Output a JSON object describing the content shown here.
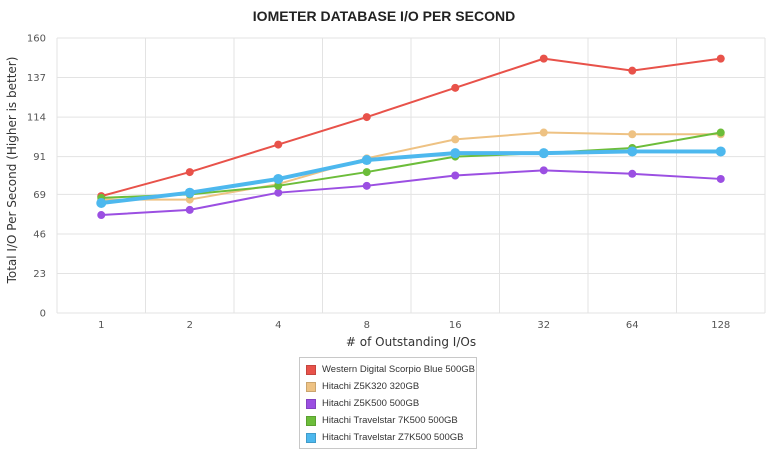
{
  "chart_data": {
    "type": "line",
    "title": "IOMETER DATABASE I/O PER SECOND",
    "xlabel": "# of Outstanding I/Os",
    "ylabel": "Total I/O Per Second (Higher is better)",
    "categories": [
      "1",
      "2",
      "4",
      "8",
      "16",
      "32",
      "64",
      "128"
    ],
    "ylim": [
      0,
      160
    ],
    "yticks": [
      0,
      23,
      46,
      69,
      91,
      114,
      137,
      160
    ],
    "grid": true,
    "legend_position": "bottom",
    "series": [
      {
        "name": "Western Digital Scorpio Blue 500GB",
        "color": "#e8524a",
        "values": [
          68,
          82,
          98,
          114,
          131,
          148,
          141,
          148
        ]
      },
      {
        "name": "Hitachi Z5K320 320GB",
        "color": "#eec283",
        "values": [
          66,
          66,
          75,
          90,
          101,
          105,
          104,
          104
        ]
      },
      {
        "name": "Hitachi Z5K500 500GB",
        "color": "#9b4fe2",
        "values": [
          57,
          60,
          70,
          74,
          80,
          83,
          81,
          78
        ]
      },
      {
        "name": "Hitachi Travelstar 7K500 500GB",
        "color": "#6cbd3a",
        "values": [
          67,
          69,
          74,
          82,
          91,
          93,
          96,
          105
        ]
      },
      {
        "name": "Hitachi Travelstar Z7K500 500GB",
        "color": "#4db8ee",
        "values": [
          64,
          70,
          78,
          89,
          93,
          93,
          94,
          94
        ]
      }
    ]
  }
}
